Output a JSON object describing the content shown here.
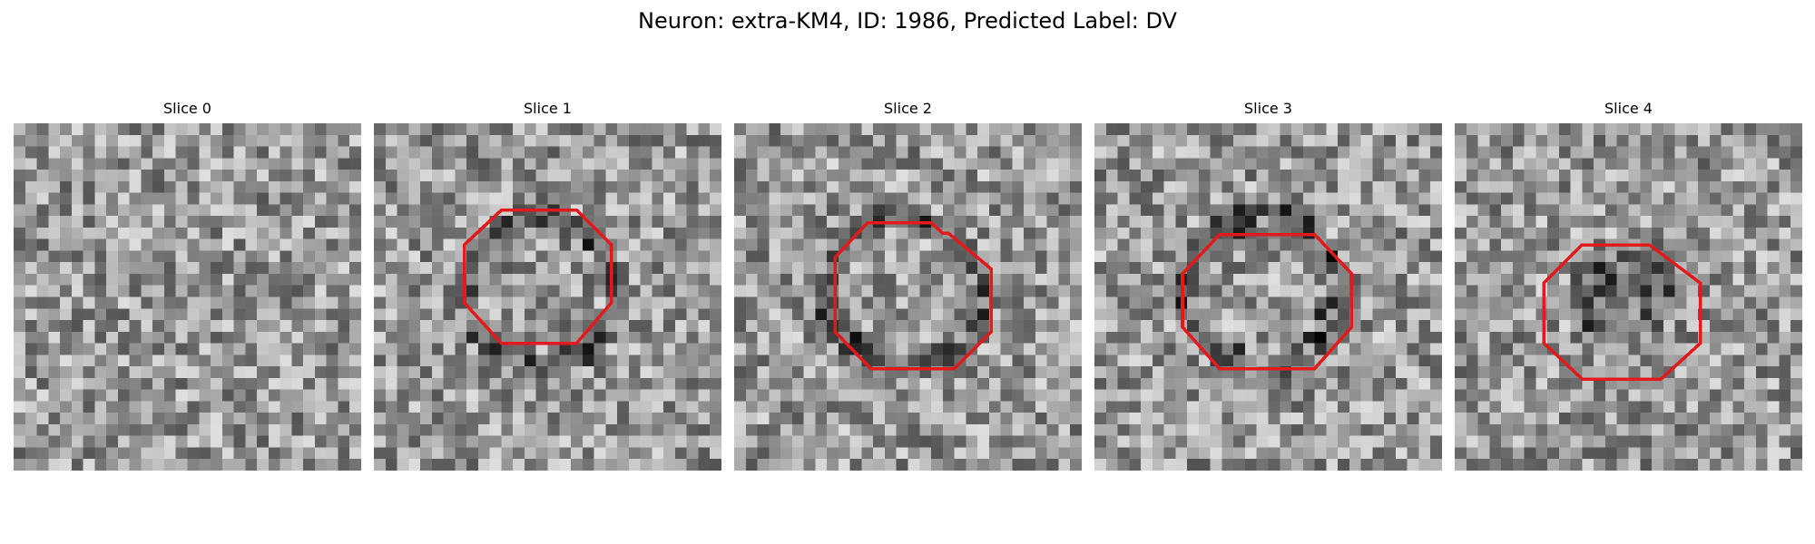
{
  "figure": {
    "title": "Neuron: extra-KM4, ID: 1986, Predicted Label: DV",
    "outline_color": "#e31a1c",
    "colormap": "gray",
    "axes_visible": false
  },
  "panels": [
    {
      "title": "Slice 0",
      "has_outline": false,
      "seed": 11,
      "dark_ring": false
    },
    {
      "title": "Slice 1",
      "has_outline": true,
      "seed": 23,
      "dark_ring": true
    },
    {
      "title": "Slice 2",
      "has_outline": true,
      "seed": 37,
      "dark_ring": true
    },
    {
      "title": "Slice 3",
      "has_outline": true,
      "seed": 41,
      "dark_ring": true
    },
    {
      "title": "Slice 4",
      "has_outline": true,
      "seed": 59,
      "dark_ring": false
    }
  ]
}
